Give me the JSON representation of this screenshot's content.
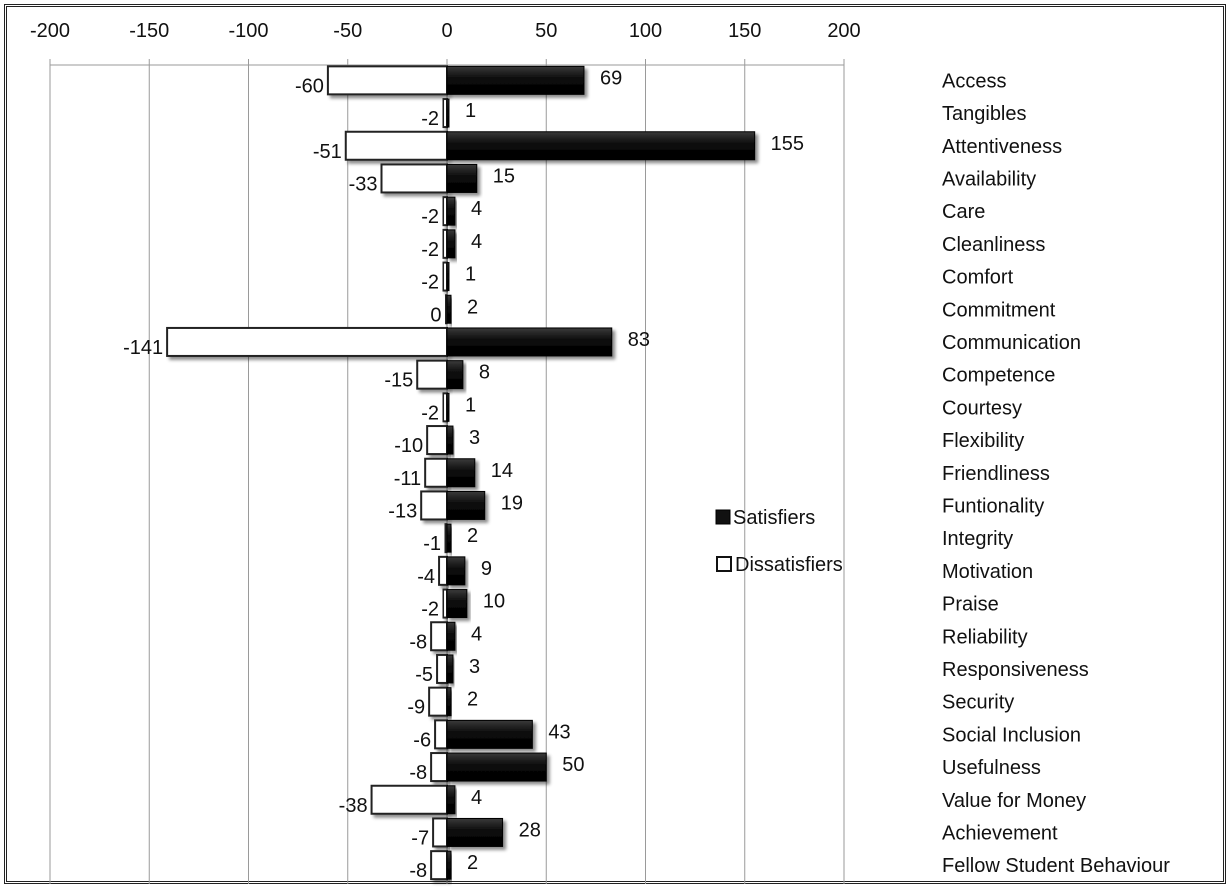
{
  "chart_data": {
    "type": "bar",
    "orientation": "horizontal",
    "categories": [
      "Access",
      "Tangibles",
      "Attentiveness",
      "Availability",
      "Care",
      "Cleanliness",
      "Comfort",
      "Commitment",
      "Communication",
      "Competence",
      "Courtesy",
      "Flexibility",
      "Friendliness",
      "Funtionality",
      "Integrity",
      "Motivation",
      "Praise",
      "Reliability",
      "Responsiveness",
      "Security",
      "Social Inclusion",
      "Usefulness",
      "Value for Money",
      "Achievement",
      "Fellow Student Behaviour"
    ],
    "series": [
      {
        "name": "Satisfiers",
        "color": "#111111",
        "values": [
          69,
          1,
          155,
          15,
          4,
          4,
          1,
          2,
          83,
          8,
          1,
          3,
          14,
          19,
          2,
          9,
          10,
          4,
          3,
          2,
          43,
          50,
          4,
          28,
          2
        ]
      },
      {
        "name": "Dissatisfiers",
        "color": "#ffffff",
        "values": [
          -60,
          -2,
          -51,
          -33,
          -2,
          -2,
          -2,
          0,
          -141,
          -15,
          -2,
          -10,
          -11,
          -13,
          -1,
          -4,
          -2,
          -8,
          -5,
          -9,
          -6,
          -8,
          -38,
          -7,
          -8
        ]
      }
    ],
    "xlim": [
      -200,
      200
    ],
    "xticks": [
      "-200",
      "-150",
      "-100",
      "-50",
      "0",
      "50",
      "100",
      "150",
      "200"
    ],
    "grid": true,
    "legend_position": "right-middle",
    "title": "",
    "xlabel": "",
    "ylabel": ""
  }
}
